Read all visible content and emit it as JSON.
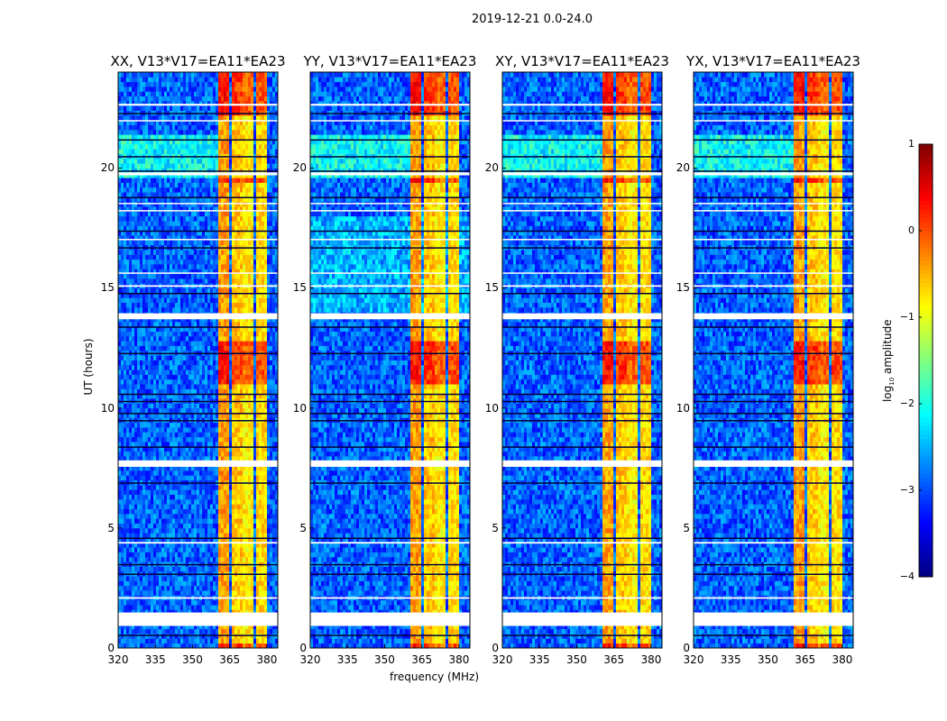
{
  "chart_data": {
    "type": "heatmap",
    "title": "2019-12-21 0.0-24.0",
    "xlabel": "frequency (MHz)",
    "ylabel": "UT (hours)",
    "xlim": [
      320,
      384.4
    ],
    "ylim": [
      0,
      24
    ],
    "xticks": [
      "320",
      "335",
      "350",
      "365",
      "380"
    ],
    "yticks": [
      "0",
      "5",
      "10",
      "15",
      "20"
    ],
    "panels": [
      {
        "title": "XX, V13*V17=EA11*EA23"
      },
      {
        "title": "YY, V13*V17=EA11*EA23"
      },
      {
        "title": "XY, V13*V17=EA11*EA23"
      },
      {
        "title": "YX, V13*V17=EA11*EA23"
      }
    ],
    "colorbar": {
      "label": "log10 amplitude",
      "label_main": "log",
      "label_sub": "10",
      "label_rest": " amplitude",
      "range": [
        -4,
        1
      ],
      "ticks": [
        "1",
        "0",
        "−1",
        "−2",
        "−3",
        "−4"
      ],
      "colormap": "jet"
    },
    "background_level": -2.9,
    "rfi_channels": [
      {
        "f": [
          360.8,
          365.0
        ],
        "level": -0.4
      },
      {
        "f": [
          365.4,
          370.0
        ],
        "level": -0.6
      },
      {
        "f": [
          370.4,
          375.0
        ],
        "level": -0.8
      },
      {
        "f": [
          375.4,
          380.2
        ],
        "level": -0.7
      }
    ],
    "strong_intervals_hours": [
      [
        11.0,
        12.8
      ],
      [
        22.2,
        24.0
      ],
      [
        19.3,
        19.6
      ],
      [
        0.0,
        0.3
      ]
    ],
    "flagged_hours": [
      [
        0.92,
        1.48
      ],
      [
        2.05,
        2.12
      ],
      [
        4.35,
        4.42
      ],
      [
        7.55,
        7.82
      ],
      [
        13.7,
        13.95
      ],
      [
        15.05,
        15.12
      ],
      [
        15.6,
        15.65
      ],
      [
        17.0,
        17.05
      ],
      [
        18.2,
        18.25
      ],
      [
        18.5,
        18.55
      ],
      [
        19.7,
        19.82
      ],
      [
        21.95,
        22.0
      ],
      [
        22.6,
        22.68
      ]
    ],
    "dropout_hours": [
      0.55,
      3.1,
      3.5,
      4.6,
      6.9,
      8.4,
      9.5,
      9.8,
      10.3,
      10.6,
      12.3,
      13.4,
      14.8,
      16.7,
      17.4,
      18.8,
      19.9,
      20.5,
      21.2,
      22.3
    ]
  }
}
